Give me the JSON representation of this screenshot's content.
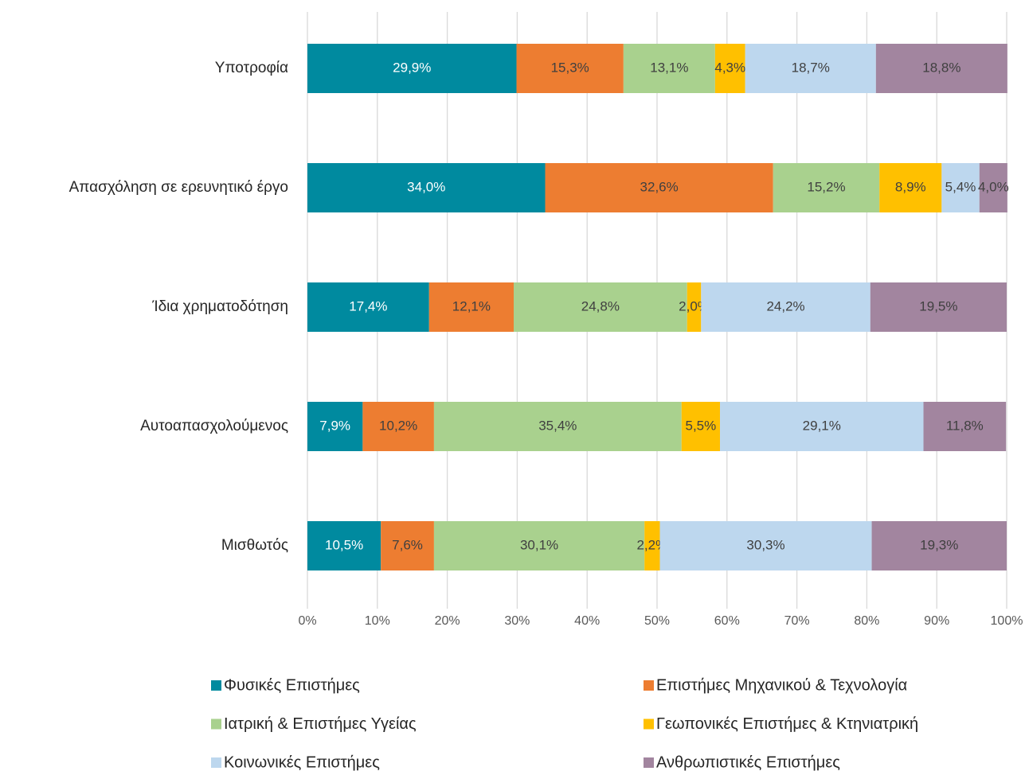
{
  "chart_data": {
    "type": "stacked_barh",
    "categories": [
      "Υποτροφία",
      "Απασχόληση σε ερευνητικό έργο",
      "Ίδια χρηματοδότηση",
      "Αυτοαπασχολούμενος",
      "Μισθωτός"
    ],
    "series": [
      {
        "name": "Φυσικές Επιστήμες",
        "color": "#008a9f",
        "values": [
          29.9,
          34.0,
          17.4,
          7.9,
          10.5
        ],
        "value_labels": [
          "29,9%",
          "34,0%",
          "17,4%",
          "7,9%",
          "10,5%"
        ]
      },
      {
        "name": "Επιστήμες Μηχανικού & Τεχνολογία",
        "color": "#ed7d31",
        "values": [
          15.3,
          32.6,
          12.1,
          10.2,
          7.6
        ],
        "value_labels": [
          "15,3%",
          "32,6%",
          "12,1%",
          "10,2%",
          "7,6%"
        ]
      },
      {
        "name": "Ιατρική & Επιστήμες Υγείας",
        "color": "#a9d18e",
        "values": [
          13.1,
          15.2,
          24.8,
          35.4,
          30.1
        ],
        "value_labels": [
          "13,1%",
          "15,2%",
          "24,8%",
          "35,4%",
          "30,1%"
        ]
      },
      {
        "name": "Γεωπονικές Επιστήμες & Κτηνιατρική",
        "color": "#ffc000",
        "values": [
          4.3,
          8.9,
          2.0,
          5.5,
          2.2
        ],
        "value_labels": [
          "4,3%",
          "8,9%",
          "2,0%",
          "5,5%",
          "2,2%"
        ]
      },
      {
        "name": "Κοινωνικές Επιστήμες",
        "color": "#bdd7ee",
        "values": [
          18.7,
          5.4,
          24.2,
          29.1,
          30.3
        ],
        "value_labels": [
          "18,7%",
          "5,4%",
          "24,2%",
          "29,1%",
          "30,3%"
        ]
      },
      {
        "name": "Ανθρωπιστικές Επιστήμες",
        "color": "#a2859f",
        "values": [
          18.8,
          4.0,
          19.5,
          11.8,
          19.3
        ],
        "value_labels": [
          "18,8%",
          "4,0%",
          "19,5%",
          "11,8%",
          "19,3%"
        ]
      }
    ],
    "xlim": [
      0,
      100
    ],
    "xticks": [
      {
        "value": 0,
        "label": "0%"
      },
      {
        "value": 10,
        "label": "10%"
      },
      {
        "value": 20,
        "label": "20%"
      },
      {
        "value": 30,
        "label": "30%"
      },
      {
        "value": 40,
        "label": "40%"
      },
      {
        "value": 50,
        "label": "50%"
      },
      {
        "value": 60,
        "label": "60%"
      },
      {
        "value": 70,
        "label": "70%"
      },
      {
        "value": 80,
        "label": "80%"
      },
      {
        "value": 90,
        "label": "90%"
      },
      {
        "value": 100,
        "label": "100%"
      }
    ],
    "grid": true,
    "legend": "bottom"
  }
}
